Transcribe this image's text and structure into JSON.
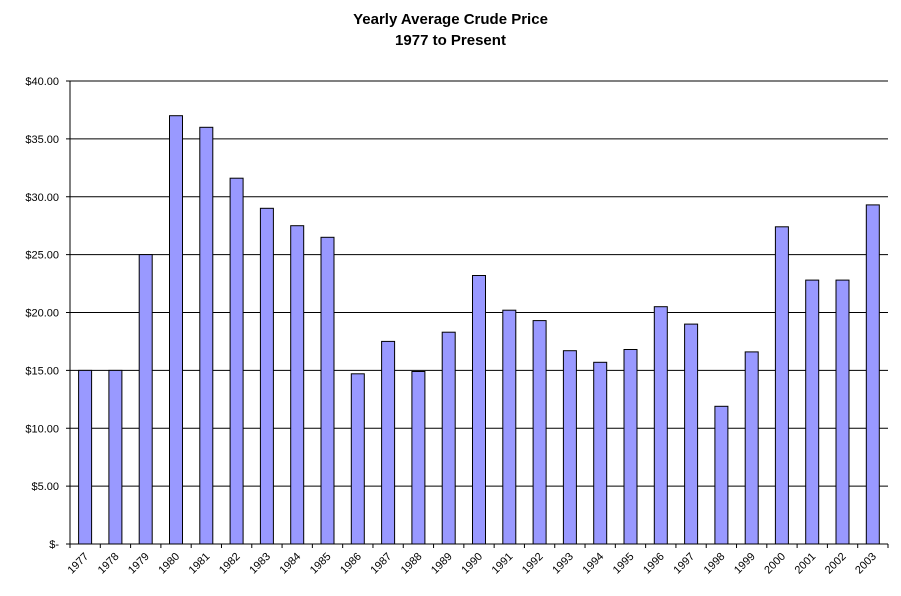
{
  "chart_data": {
    "type": "bar",
    "title": "Yearly Average Crude Price",
    "subtitle": "1977 to Present",
    "xlabel": "",
    "ylabel": "",
    "ylim": [
      0,
      40
    ],
    "yticks": [
      0,
      5,
      10,
      15,
      20,
      25,
      30,
      35,
      40
    ],
    "ytick_labels": [
      "$-",
      "$5.00",
      "$10.00",
      "$15.00",
      "$20.00",
      "$25.00",
      "$30.00",
      "$35.00",
      "$40.00"
    ],
    "grid": true,
    "legend": "none",
    "categories": [
      "1977",
      "1978",
      "1979",
      "1980",
      "1981",
      "1982",
      "1983",
      "1984",
      "1985",
      "1986",
      "1987",
      "1988",
      "1989",
      "1990",
      "1991",
      "1992",
      "1993",
      "1994",
      "1995",
      "1996",
      "1997",
      "1998",
      "1999",
      "2000",
      "2001",
      "2002",
      "2003"
    ],
    "values": [
      15.0,
      15.0,
      25.0,
      37.0,
      36.0,
      31.6,
      29.0,
      27.5,
      26.5,
      14.7,
      17.5,
      14.9,
      18.3,
      23.2,
      20.2,
      19.3,
      16.7,
      15.7,
      16.8,
      20.5,
      19.0,
      11.9,
      16.6,
      27.4,
      22.8,
      22.8,
      29.3
    ],
    "bar_color": "#9999ff",
    "bar_stroke": "#000000"
  }
}
